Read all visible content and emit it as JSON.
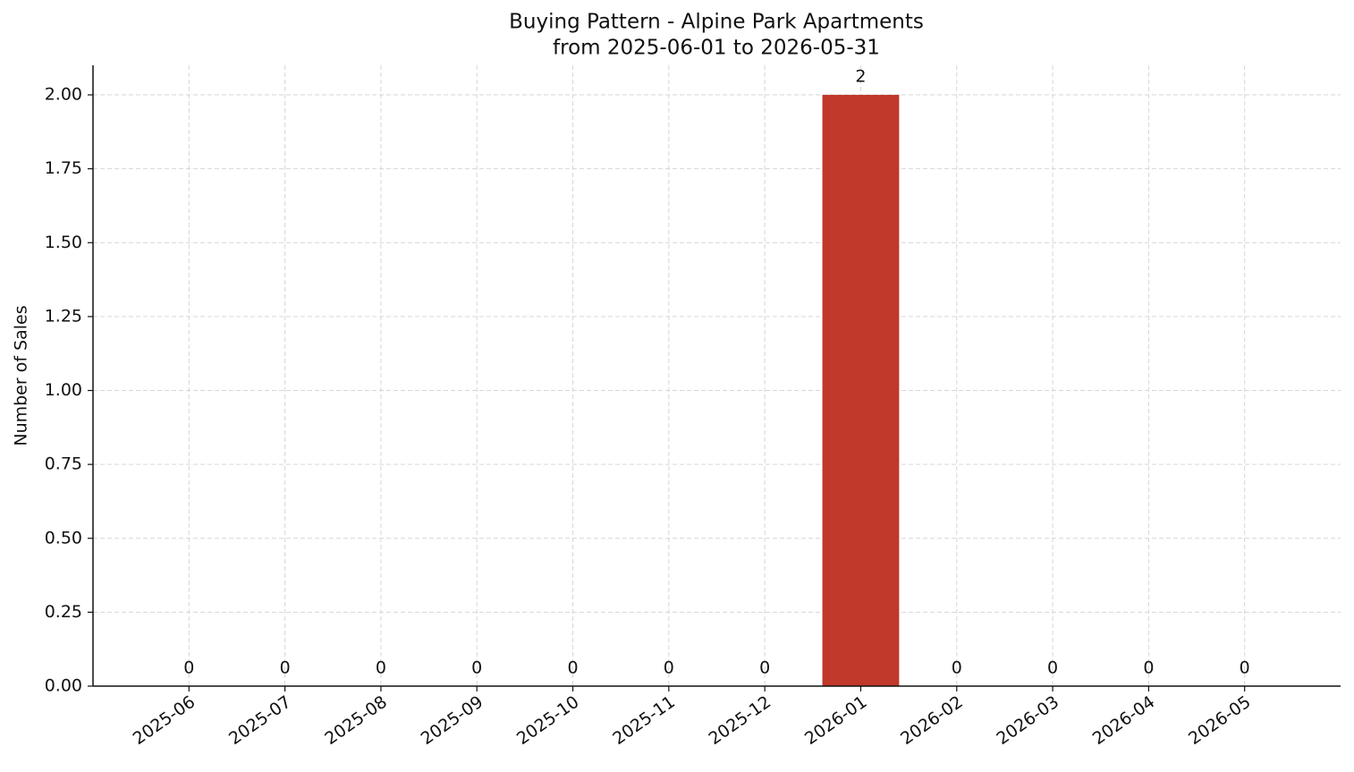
{
  "chart_data": {
    "type": "bar",
    "title": "Buying Pattern - Alpine Park Apartments",
    "subtitle": "from 2025-06-01 to 2026-05-31",
    "y_label": "Number of Sales",
    "categories": [
      "2025-06",
      "2025-07",
      "2025-08",
      "2025-09",
      "2025-10",
      "2025-11",
      "2025-12",
      "2026-01",
      "2026-02",
      "2026-03",
      "2026-04",
      "2026-05"
    ],
    "values": [
      0,
      0,
      0,
      0,
      0,
      0,
      0,
      2,
      0,
      0,
      0,
      0
    ],
    "color": "#c0392b",
    "ylim": [
      0,
      2.1
    ],
    "yticks": [
      {
        "value": 0,
        "label": "0.00"
      },
      {
        "value": 0.25,
        "label": "0.25"
      },
      {
        "value": 0.5,
        "label": "0.50"
      },
      {
        "value": 0.75,
        "label": "0.75"
      },
      {
        "value": 1,
        "label": "1.00"
      },
      {
        "value": 1.25,
        "label": "1.25"
      },
      {
        "value": 1.5,
        "label": "1.50"
      },
      {
        "value": 1.75,
        "label": "1.75"
      },
      {
        "value": 2,
        "label": "2.00"
      }
    ],
    "grid": true
  }
}
